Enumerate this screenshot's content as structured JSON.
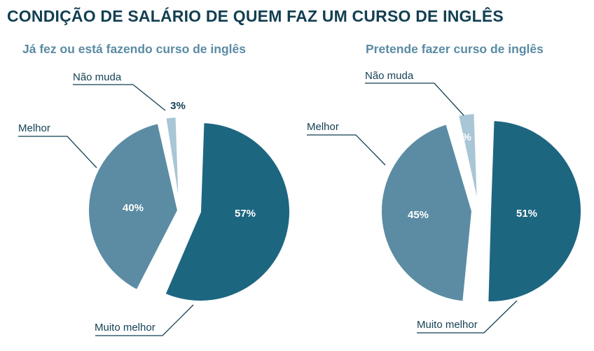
{
  "title": "CONDIÇÃO DE SALÁRIO DE QUEM FAZ UM CURSO DE INGLÊS",
  "colors": {
    "muito_melhor": "#1d6680",
    "melhor": "#5b8ca3",
    "nao_muda": "#a9c6d6",
    "title": "#123f52",
    "subtitle": "#5a8ba3"
  },
  "chart_data": [
    {
      "type": "pie",
      "title": "Já fez ou está fazendo curso de inglês",
      "slices": [
        {
          "name": "Muito melhor",
          "value": 57,
          "label": "57%",
          "color": "#1d6680"
        },
        {
          "name": "Melhor",
          "value": 40,
          "label": "40%",
          "color": "#5b8ca3"
        },
        {
          "name": "Não muda",
          "value": 3,
          "label": "3%",
          "color": "#a9c6d6"
        }
      ]
    },
    {
      "type": "pie",
      "title": "Pretende fazer curso de inglês",
      "slices": [
        {
          "name": "Muito melhor",
          "value": 51,
          "label": "51%",
          "color": "#1d6680"
        },
        {
          "name": "Melhor",
          "value": 45,
          "label": "45%",
          "color": "#5b8ca3"
        },
        {
          "name": "Não muda",
          "value": 4,
          "label": "4%",
          "color": "#a9c6d6"
        }
      ]
    }
  ]
}
